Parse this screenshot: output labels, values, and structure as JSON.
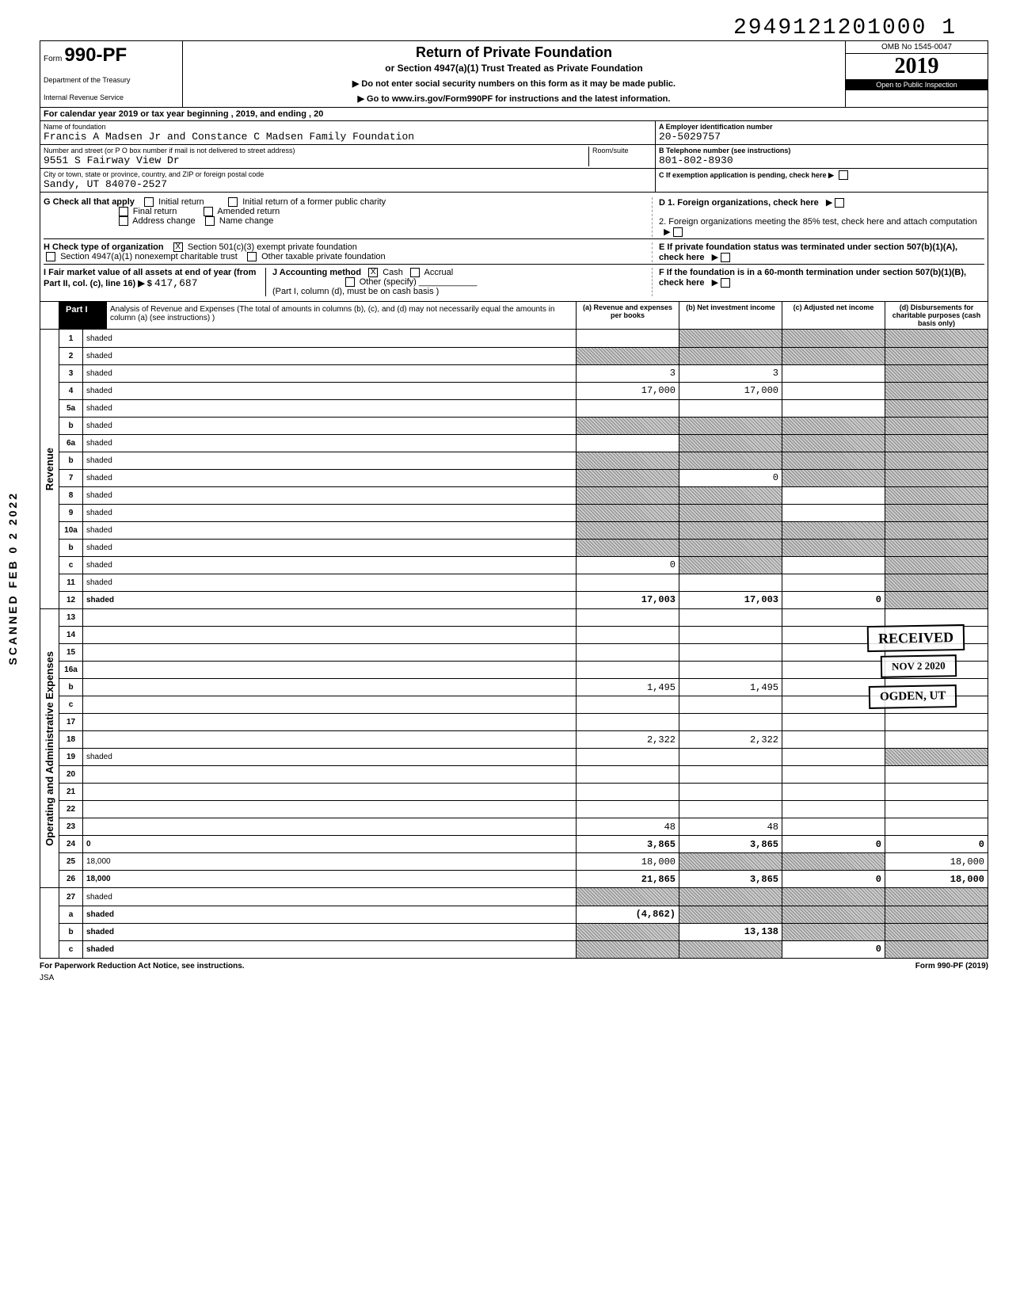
{
  "top_number": "2949121201000 1",
  "form": {
    "form_label": "Form",
    "number": "990-PF",
    "dept1": "Department of the Treasury",
    "dept2": "Internal Revenue Service",
    "title": "Return of Private Foundation",
    "subtitle": "or Section 4947(a)(1) Trust Treated as Private Foundation",
    "note1": "▶ Do not enter social security numbers on this form as it may be made public.",
    "note2": "▶ Go to www.irs.gov/Form990PF for instructions and the latest information.",
    "omb": "OMB No 1545-0047",
    "year": "2019",
    "inspection": "Open to Public Inspection"
  },
  "calendar": "For calendar year 2019 or tax year beginning                              , 2019, and ending                              , 20",
  "foundation": {
    "name_label": "Name of foundation",
    "name": "Francis A Madsen Jr and Constance C Madsen Family Foundation",
    "ein_label": "A  Employer identification number",
    "ein": "20-5029757",
    "addr_label": "Number and street (or P O  box number if mail is not delivered to street address)",
    "room_label": "Room/suite",
    "addr": "9551 S Fairway View Dr",
    "phone_label": "B  Telephone number (see instructions)",
    "phone": "801-802-8930",
    "city_label": "City or town, state or province, country, and ZIP or foreign postal code",
    "city": "Sandy, UT 84070-2527",
    "c_label": "C  If exemption application is pending, check here ▶"
  },
  "checks": {
    "g_label": "G  Check all that apply",
    "g_initial": "Initial return",
    "g_initial_former": "Initial return of a former public charity",
    "g_final": "Final return",
    "g_amended": "Amended return",
    "g_address": "Address change",
    "g_name": "Name change",
    "d1": "D  1. Foreign organizations, check here",
    "d2": "2. Foreign organizations meeting the 85% test, check here and attach computation",
    "h_label": "H  Check type of organization",
    "h_501c3": "Section 501(c)(3) exempt private foundation",
    "h_4947": "Section 4947(a)(1) nonexempt charitable trust",
    "h_other": "Other taxable private foundation",
    "e_label": "E  If private foundation status was terminated under section 507(b)(1)(A), check here",
    "i_label": "I   Fair market value of all assets at end of year  (from Part II, col. (c), line 16) ▶ $",
    "i_value": "417,687",
    "j_label": "J   Accounting method",
    "j_cash": "Cash",
    "j_accrual": "Accrual",
    "j_other": "Other (specify)",
    "j_note": "(Part I, column (d), must be on cash basis )",
    "f_label": "F  If the foundation is in a 60-month termination under section 507(b)(1)(B), check here"
  },
  "part1": {
    "label": "Part I",
    "desc": "Analysis of Revenue and Expenses (The total of amounts in columns (b), (c), and (d) may not necessarily equal the amounts in column (a) (see instructions) )",
    "col_a": "(a) Revenue and expenses per books",
    "col_b": "(b) Net investment income",
    "col_c": "(c) Adjusted net income",
    "col_d": "(d) Disbursements for charitable purposes (cash basis only)"
  },
  "revenue_label": "Revenue",
  "expenses_label": "Operating and Administrative Expenses",
  "rows": {
    "r1": {
      "n": "1",
      "d": "shaded",
      "a": "",
      "b": "shaded",
      "c": "shaded"
    },
    "r2": {
      "n": "2",
      "d": "shaded",
      "a": "shaded",
      "b": "shaded",
      "c": "shaded"
    },
    "r3": {
      "n": "3",
      "d": "shaded",
      "a": "3",
      "b": "3",
      "c": ""
    },
    "r4": {
      "n": "4",
      "d": "shaded",
      "a": "17,000",
      "b": "17,000",
      "c": ""
    },
    "r5a": {
      "n": "5a",
      "d": "shaded",
      "a": "",
      "b": "",
      "c": ""
    },
    "r5b": {
      "n": "b",
      "d": "shaded",
      "a": "shaded",
      "b": "shaded",
      "c": "shaded"
    },
    "r6a": {
      "n": "6a",
      "d": "shaded",
      "a": "",
      "b": "shaded",
      "c": "shaded"
    },
    "r6b": {
      "n": "b",
      "d": "shaded",
      "a": "shaded",
      "b": "shaded",
      "c": "shaded"
    },
    "r7": {
      "n": "7",
      "d": "shaded",
      "a": "shaded",
      "b": "0",
      "c": "shaded"
    },
    "r8": {
      "n": "8",
      "d": "shaded",
      "a": "shaded",
      "b": "shaded",
      "c": ""
    },
    "r9": {
      "n": "9",
      "d": "shaded",
      "a": "shaded",
      "b": "shaded",
      "c": ""
    },
    "r10a": {
      "n": "10a",
      "d": "shaded",
      "a": "shaded",
      "b": "shaded",
      "c": "shaded"
    },
    "r10b": {
      "n": "b",
      "d": "shaded",
      "a": "shaded",
      "b": "shaded",
      "c": "shaded"
    },
    "r10c": {
      "n": "c",
      "d": "shaded",
      "a": "0",
      "b": "shaded",
      "c": ""
    },
    "r11": {
      "n": "11",
      "d": "shaded",
      "a": "",
      "b": "",
      "c": ""
    },
    "r12": {
      "n": "12",
      "d": "shaded",
      "a": "17,003",
      "b": "17,003",
      "c": "0",
      "bold": true
    },
    "r13": {
      "n": "13",
      "d": "",
      "a": "",
      "b": "",
      "c": ""
    },
    "r14": {
      "n": "14",
      "d": "",
      "a": "",
      "b": "",
      "c": ""
    },
    "r15": {
      "n": "15",
      "d": "",
      "a": "",
      "b": "",
      "c": ""
    },
    "r16a": {
      "n": "16a",
      "d": "",
      "a": "",
      "b": "",
      "c": ""
    },
    "r16b": {
      "n": "b",
      "d": "",
      "a": "1,495",
      "b": "1,495",
      "c": ""
    },
    "r16c": {
      "n": "c",
      "d": "",
      "a": "",
      "b": "",
      "c": ""
    },
    "r17": {
      "n": "17",
      "d": "",
      "a": "",
      "b": "",
      "c": ""
    },
    "r18": {
      "n": "18",
      "d": "",
      "a": "2,322",
      "b": "2,322",
      "c": ""
    },
    "r19": {
      "n": "19",
      "d": "shaded",
      "a": "",
      "b": "",
      "c": ""
    },
    "r20": {
      "n": "20",
      "d": "",
      "a": "",
      "b": "",
      "c": ""
    },
    "r21": {
      "n": "21",
      "d": "",
      "a": "",
      "b": "",
      "c": ""
    },
    "r22": {
      "n": "22",
      "d": "",
      "a": "",
      "b": "",
      "c": ""
    },
    "r23": {
      "n": "23",
      "d": "",
      "a": "48",
      "b": "48",
      "c": ""
    },
    "r24": {
      "n": "24",
      "d": "0",
      "a": "3,865",
      "b": "3,865",
      "c": "0",
      "bold": true
    },
    "r25": {
      "n": "25",
      "d": "18,000",
      "a": "18,000",
      "b": "shaded",
      "c": "shaded"
    },
    "r26": {
      "n": "26",
      "d": "18,000",
      "a": "21,865",
      "b": "3,865",
      "c": "0",
      "bold": true
    },
    "r27": {
      "n": "27",
      "d": "shaded",
      "a": "shaded",
      "b": "shaded",
      "c": "shaded"
    },
    "r27a": {
      "n": "a",
      "d": "shaded",
      "a": "(4,862)",
      "b": "shaded",
      "c": "shaded",
      "bold": true
    },
    "r27b": {
      "n": "b",
      "d": "shaded",
      "a": "shaded",
      "b": "13,138",
      "c": "shaded",
      "bold": true
    },
    "r27c": {
      "n": "c",
      "d": "shaded",
      "a": "shaded",
      "b": "shaded",
      "c": "0",
      "bold": true
    }
  },
  "stamps": {
    "received": "RECEIVED",
    "date": "NOV 2  2020",
    "ogden": "OGDEN, UT",
    "scanned": "SCANNED  FEB 0 2 2022"
  },
  "footer": {
    "left": "For Paperwork Reduction Act Notice, see instructions.",
    "right": "Form 990-PF (2019)",
    "jsa": "JSA"
  }
}
